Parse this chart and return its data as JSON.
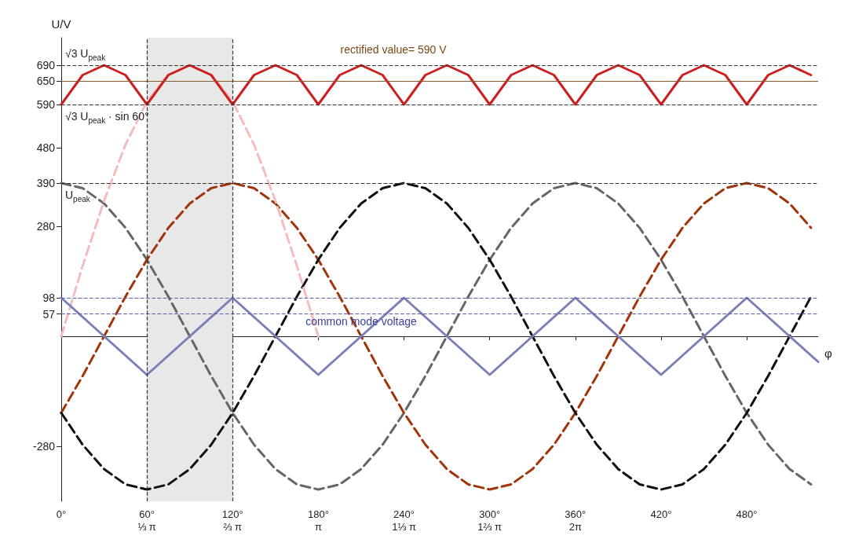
{
  "chart_data": {
    "type": "line",
    "xlabel": "φ",
    "ylabel": "U/V",
    "x": [
      0,
      15,
      30,
      45,
      60,
      75,
      90,
      105,
      120,
      135,
      150,
      165,
      180,
      195,
      210,
      225,
      240,
      255,
      270,
      285,
      300,
      315,
      330,
      345,
      360,
      375,
      390,
      405,
      420,
      435,
      450,
      465,
      480,
      495,
      510,
      525
    ],
    "series": [
      {
        "color": "#666666",
        "line_style": "dashed",
        "values": [
          390,
          377,
          338,
          276,
          195,
          101,
          0,
          -101,
          -195,
          -276,
          -338,
          -377,
          -390,
          -377,
          -338,
          -276,
          -195,
          -101,
          0,
          101,
          195,
          276,
          338,
          377,
          390,
          377,
          338,
          276,
          195,
          101,
          0,
          -101,
          -195,
          -276,
          -338,
          -377
        ]
      },
      {
        "color": "#a0350c",
        "line_style": "dashed",
        "values": [
          -195,
          -101,
          0,
          101,
          195,
          276,
          338,
          377,
          390,
          377,
          338,
          276,
          195,
          101,
          0,
          -101,
          -195,
          -276,
          -338,
          -377,
          -390,
          -377,
          -338,
          -276,
          -195,
          -101,
          0,
          101,
          195,
          276,
          338,
          377,
          390,
          377,
          338,
          276
        ]
      },
      {
        "color": "#111111",
        "line_style": "dashed",
        "values": [
          -195,
          -276,
          -338,
          -377,
          -390,
          -377,
          -338,
          -276,
          -195,
          -101,
          0,
          101,
          195,
          276,
          338,
          377,
          390,
          377,
          338,
          276,
          195,
          101,
          0,
          -101,
          -195,
          -276,
          -338,
          -377,
          -390,
          -377,
          -338,
          -276,
          -195,
          -101,
          0,
          101
        ]
      },
      {
        "color": "#f4bcbc",
        "line_style": "dashed",
        "x": [
          0,
          15,
          30,
          45,
          60,
          75,
          90,
          105,
          120,
          135,
          150,
          165,
          180
        ],
        "values": [
          0,
          179,
          345,
          488,
          598,
          666,
          690,
          666,
          598,
          488,
          345,
          179,
          0
        ]
      },
      {
        "color": "#cc1f1f",
        "line_style": "solid",
        "values": [
          590,
          665,
          690,
          665,
          590,
          665,
          690,
          665,
          590,
          665,
          690,
          665,
          590,
          665,
          690,
          665,
          590,
          665,
          690,
          665,
          590,
          665,
          690,
          665,
          590,
          665,
          690,
          665,
          590,
          665,
          690,
          665,
          590,
          665,
          690,
          665
        ]
      },
      {
        "name": "common mode voltage",
        "color": "#7a7fb8",
        "line_style": "solid",
        "x": [
          0,
          30,
          60,
          90,
          120,
          150,
          180,
          210,
          240,
          270,
          300,
          330,
          360,
          390,
          420,
          450,
          480,
          510,
          530
        ],
        "values": [
          98,
          0,
          -98,
          0,
          98,
          0,
          -98,
          0,
          98,
          0,
          -98,
          0,
          98,
          0,
          -98,
          0,
          98,
          0,
          -65
        ]
      }
    ],
    "xlim": [
      0,
      530
    ],
    "xticks": [
      {
        "value": 0,
        "label": "0°"
      },
      {
        "value": 60,
        "label": "60°\n⅓ π"
      },
      {
        "value": 120,
        "label": "120°\n⅔ π"
      },
      {
        "value": 180,
        "label": "180°\nπ"
      },
      {
        "value": 240,
        "label": "240°\n1⅓ π"
      },
      {
        "value": 300,
        "label": "300°\n1⅔ π"
      },
      {
        "value": 360,
        "label": "360°\n2π"
      },
      {
        "value": 420,
        "label": "420°"
      },
      {
        "value": 480,
        "label": "480°"
      }
    ],
    "ylim": [
      -420,
      760
    ],
    "yticks": [
      -280,
      57,
      98,
      280,
      390,
      480,
      590,
      650,
      690
    ],
    "ref_lines": [
      {
        "axis": "y",
        "value": 690,
        "label": "√3 U$_{peak}$",
        "color": "#333333",
        "line_style": "dashed"
      },
      {
        "axis": "y",
        "value": 650,
        "color": "#8b5a2b",
        "line_style": "solid"
      },
      {
        "axis": "y",
        "value": 590,
        "label": "√3 U$_{peak}$ · sin 60°",
        "color": "#333333",
        "line_style": "dashed"
      },
      {
        "axis": "y",
        "value": 390,
        "label": "U$_{peak}$",
        "color": "#333333",
        "line_style": "dashed"
      },
      {
        "axis": "y",
        "value": 98,
        "color": "#5a5fa8",
        "line_style": "dashed"
      },
      {
        "axis": "y",
        "value": 57,
        "color": "#5a5fa8",
        "line_style": "dashed"
      },
      {
        "axis": "x",
        "value": 60,
        "color": "#333333",
        "line_style": "dashed"
      },
      {
        "axis": "x",
        "value": 120,
        "color": "#333333",
        "line_style": "dashed"
      }
    ],
    "bands": [
      {
        "axis": "x",
        "from": 60,
        "to": 120,
        "color": "#e8e8e8"
      }
    ],
    "annotations": [
      "rectified value= 590 V"
    ],
    "grid": false,
    "legend": false,
    "marker": "none"
  }
}
